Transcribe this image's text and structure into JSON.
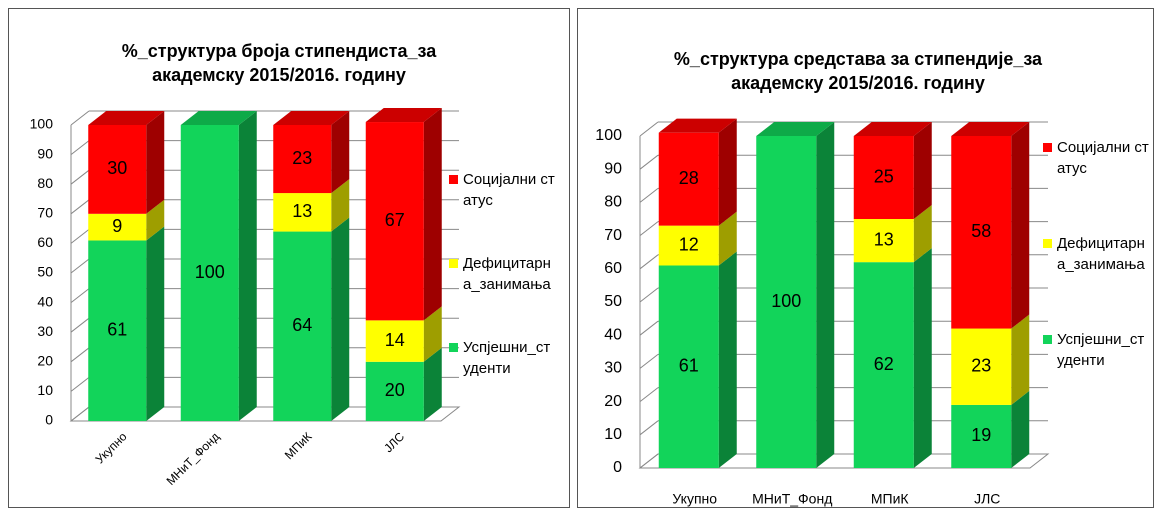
{
  "chart_data": [
    {
      "type": "bar3d_stacked",
      "title": "%_структура броја стипендиста_за академску 2015/2016. годину",
      "categories": [
        "Укупно",
        "МНиТ_Фонд",
        "МПиК",
        "ЈЛС"
      ],
      "series": [
        {
          "name": "Успјешни_студенти",
          "color": "#12d45a",
          "values": [
            61,
            100,
            64,
            20
          ]
        },
        {
          "name": "Дефицитарна_занимања",
          "color": "#ffff00",
          "values": [
            9,
            null,
            13,
            14
          ]
        },
        {
          "name": "Социјални статус",
          "color": "#ff0000",
          "values": [
            30,
            null,
            23,
            67
          ]
        }
      ],
      "ylim": [
        0,
        100
      ],
      "yticks": [
        0,
        10,
        20,
        30,
        40,
        50,
        60,
        70,
        80,
        90,
        100
      ],
      "grid": true,
      "legend": "right",
      "x_label_rotation": 45
    },
    {
      "type": "bar3d_stacked",
      "title": "%_структура средстава за стипендије_за академску 2015/2016. годину",
      "categories": [
        "Укупно",
        "МНиТ_Фонд",
        "МПиК",
        "ЈЛС"
      ],
      "series": [
        {
          "name": "Успјешни_студенти",
          "color": "#12d45a",
          "values": [
            61,
            100,
            62,
            19
          ]
        },
        {
          "name": "Дефицитарна_занимања",
          "color": "#ffff00",
          "values": [
            12,
            null,
            13,
            23
          ]
        },
        {
          "name": "Социјални статус",
          "color": "#ff0000",
          "values": [
            28,
            null,
            25,
            58
          ]
        }
      ],
      "ylim": [
        0,
        100
      ],
      "yticks": [
        0,
        10,
        20,
        30,
        40,
        50,
        60,
        70,
        80,
        90,
        100
      ],
      "grid": true,
      "legend": "right",
      "x_label_rotation": 0
    }
  ]
}
